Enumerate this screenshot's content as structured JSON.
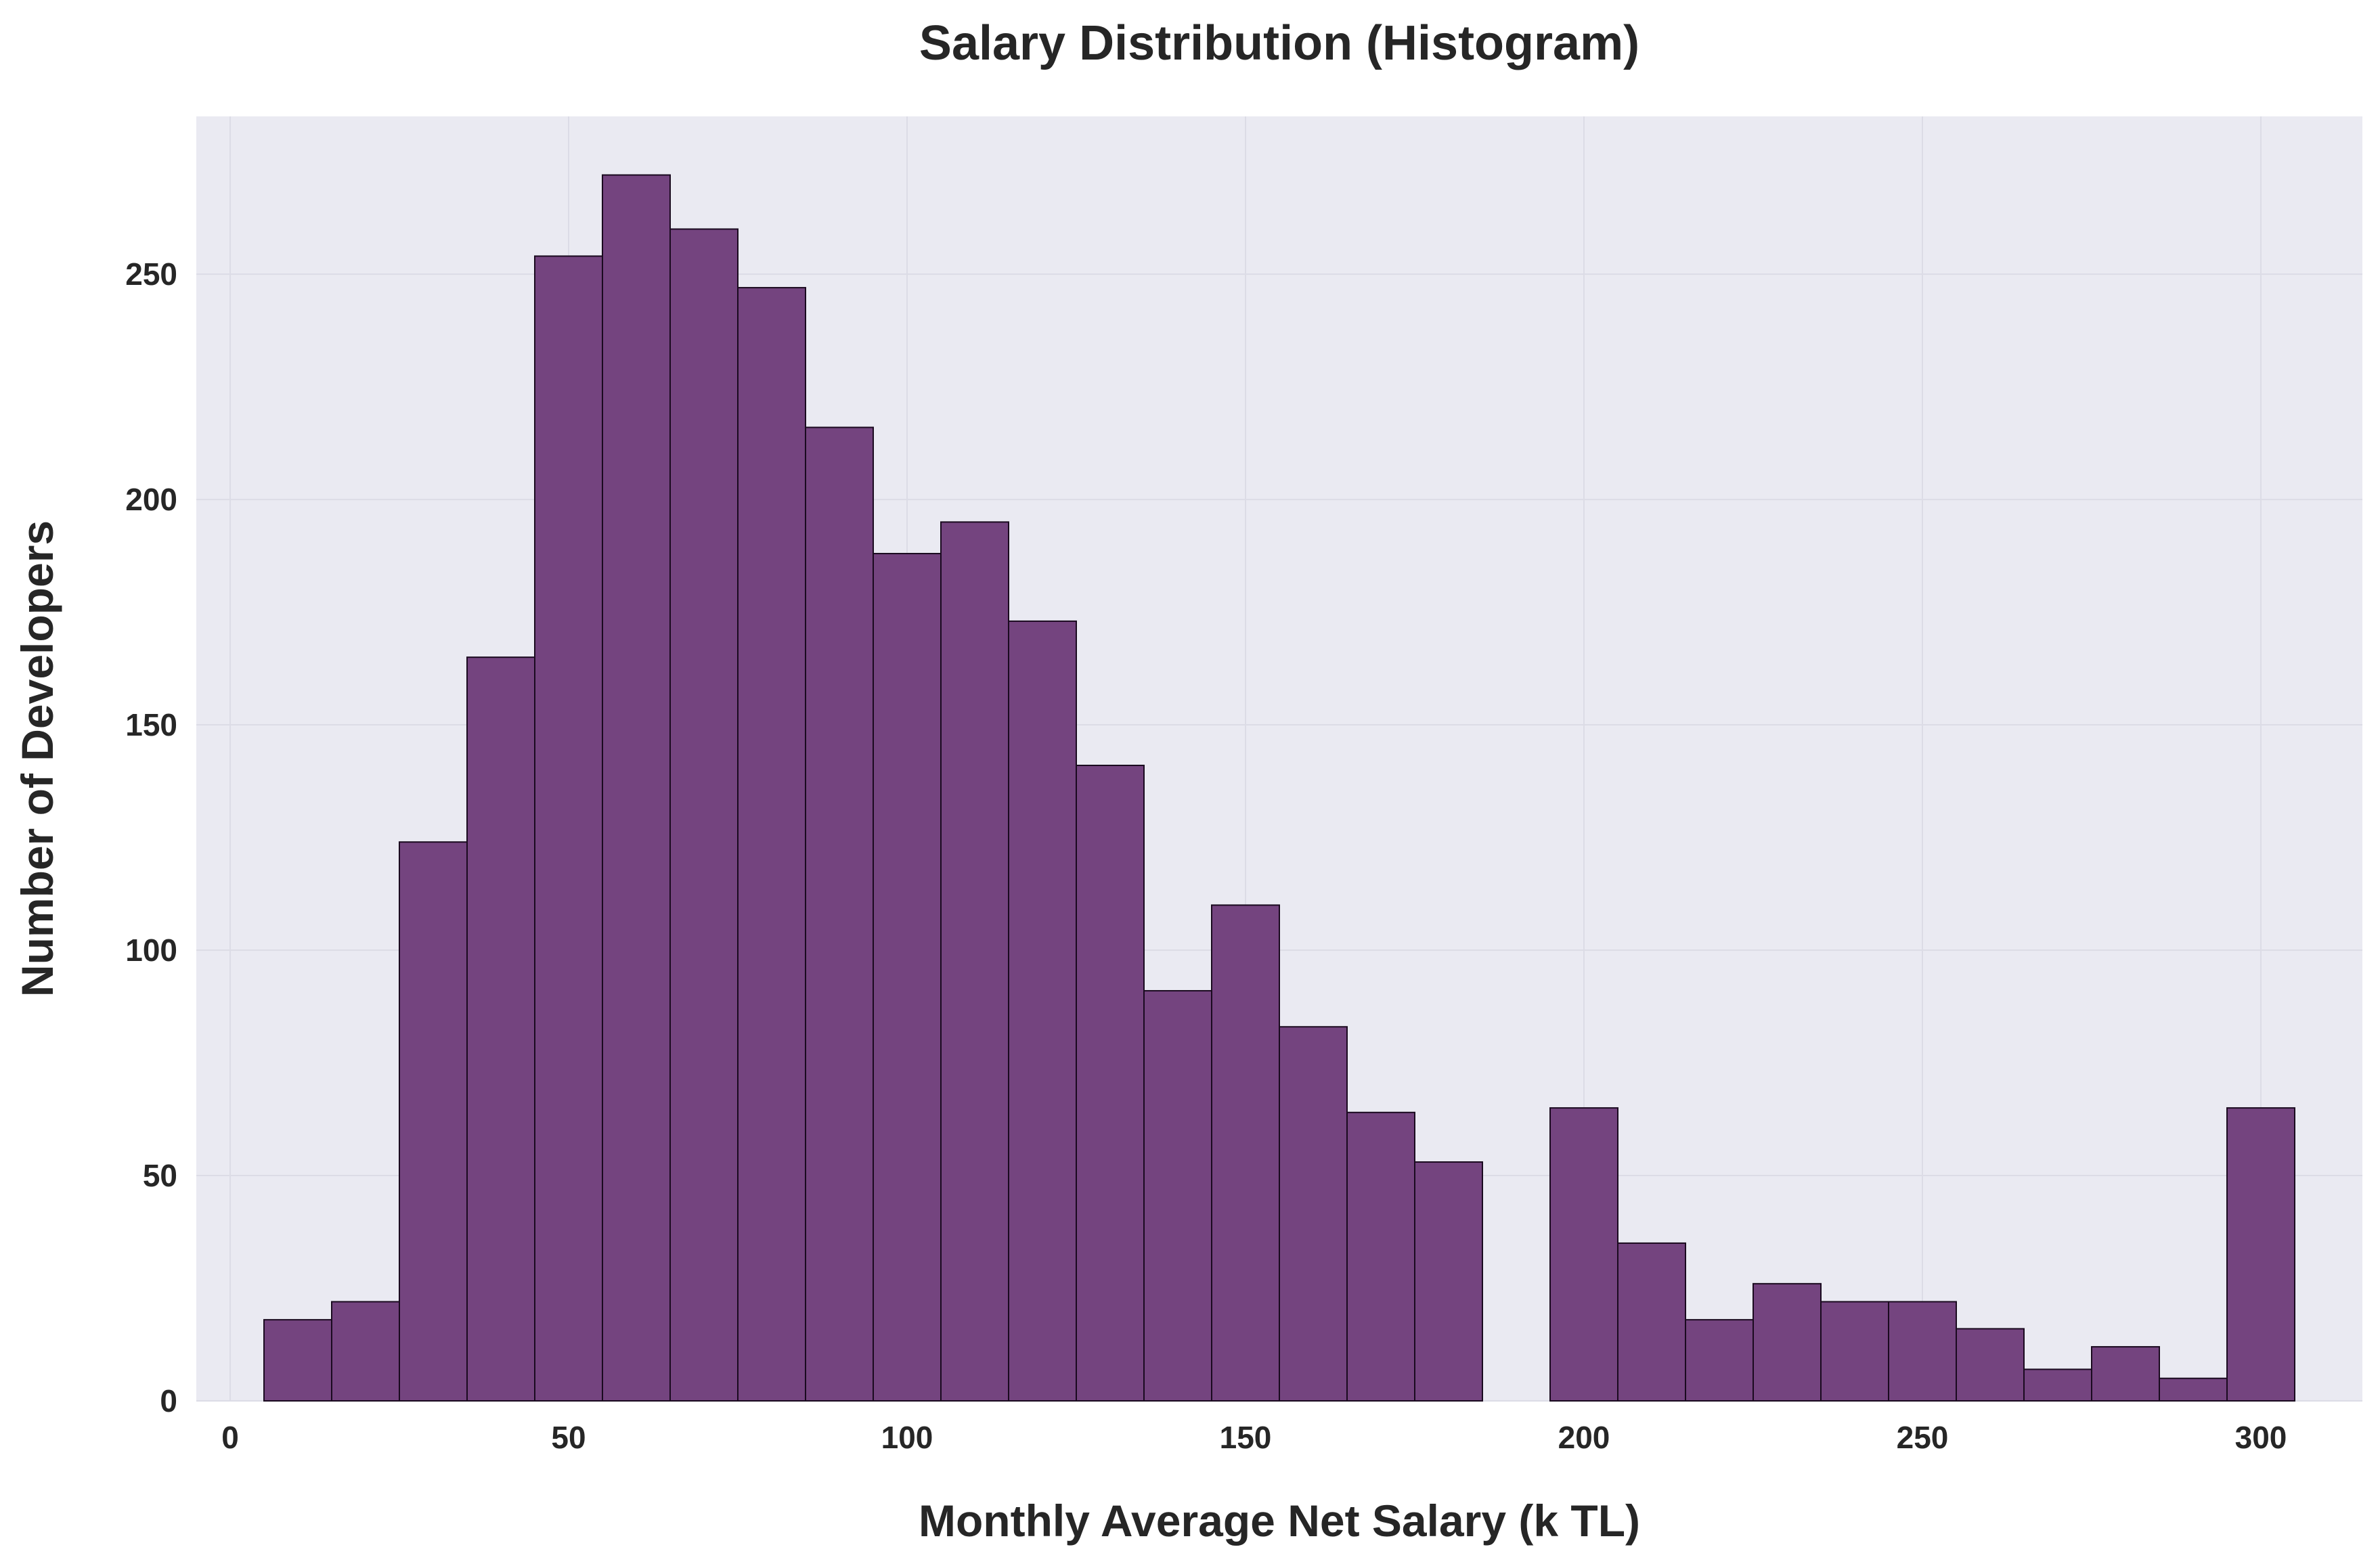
{
  "chart_data": {
    "type": "bar",
    "title": "Salary Distribution (Histogram)",
    "xlabel": "Monthly Average Net Salary (k TL)",
    "ylabel": "Number of Developers",
    "xlim": [
      -5,
      315
    ],
    "ylim": [
      0,
      285
    ],
    "x_ticks": [
      0,
      50,
      100,
      150,
      200,
      250,
      300
    ],
    "y_ticks": [
      0,
      50,
      100,
      150,
      200,
      250
    ],
    "grid": true,
    "bar_color": "#74447f",
    "edge_color": "#1a0a1f",
    "plot_background": "#eaeaf2",
    "bins": [
      {
        "start": 5,
        "end": 15,
        "count": 18
      },
      {
        "start": 15,
        "end": 25,
        "count": 22
      },
      {
        "start": 25,
        "end": 35,
        "count": 124
      },
      {
        "start": 35,
        "end": 45,
        "count": 165
      },
      {
        "start": 45,
        "end": 55,
        "count": 254
      },
      {
        "start": 55,
        "end": 65,
        "count": 272
      },
      {
        "start": 65,
        "end": 75,
        "count": 260
      },
      {
        "start": 75,
        "end": 85,
        "count": 247
      },
      {
        "start": 85,
        "end": 95,
        "count": 216
      },
      {
        "start": 95,
        "end": 105,
        "count": 188
      },
      {
        "start": 105,
        "end": 115,
        "count": 195
      },
      {
        "start": 115,
        "end": 125,
        "count": 173
      },
      {
        "start": 125,
        "end": 135,
        "count": 141
      },
      {
        "start": 135,
        "end": 145,
        "count": 91
      },
      {
        "start": 145,
        "end": 155,
        "count": 110
      },
      {
        "start": 155,
        "end": 165,
        "count": 83
      },
      {
        "start": 165,
        "end": 175,
        "count": 64
      },
      {
        "start": 175,
        "end": 185,
        "count": 53
      },
      {
        "start": 185,
        "end": 195,
        "count": 0
      },
      {
        "start": 195,
        "end": 205,
        "count": 65
      },
      {
        "start": 205,
        "end": 215,
        "count": 35
      },
      {
        "start": 215,
        "end": 225,
        "count": 18
      },
      {
        "start": 225,
        "end": 235,
        "count": 26
      },
      {
        "start": 235,
        "end": 245,
        "count": 22
      },
      {
        "start": 245,
        "end": 255,
        "count": 22
      },
      {
        "start": 255,
        "end": 265,
        "count": 16
      },
      {
        "start": 265,
        "end": 275,
        "count": 7
      },
      {
        "start": 275,
        "end": 285,
        "count": 12
      },
      {
        "start": 285,
        "end": 295,
        "count": 5
      },
      {
        "start": 295,
        "end": 305,
        "count": 65
      }
    ]
  }
}
